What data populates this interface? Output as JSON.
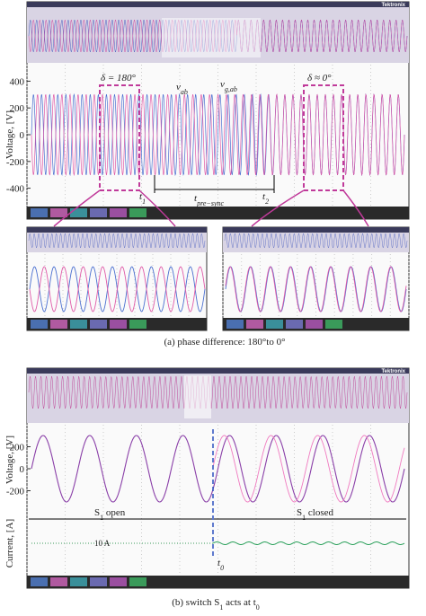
{
  "figure_a": {
    "brand": "Tektronix",
    "y_label": "Voltage, [V]",
    "yticks": [
      400,
      200,
      0,
      -200,
      -400
    ],
    "delta_left": "δ = 180°",
    "delta_right": "δ ≈ 0°",
    "v_ab": [
      "v",
      "ab"
    ],
    "v_gab": [
      "v",
      "g,ab"
    ],
    "t1": [
      "t",
      "1"
    ],
    "t_pre": [
      "t",
      "pre−sync"
    ],
    "t2": [
      "t",
      "2"
    ],
    "caption": "(a) phase difference: 180°to 0°"
  },
  "figure_b": {
    "brand": "Tektronix",
    "y_label": "Voltage, [V]",
    "yticks": [
      200,
      0,
      -200
    ],
    "current_label": "Current, [A]",
    "s1_open": [
      "S",
      "1",
      " open"
    ],
    "s1_closed": [
      "S",
      "1",
      " closed"
    ],
    "scale": "10 A",
    "t0": [
      "t",
      "0"
    ],
    "caption": [
      "(b) switch S",
      "1",
      " acts at ",
      "t",
      "0"
    ]
  }
}
